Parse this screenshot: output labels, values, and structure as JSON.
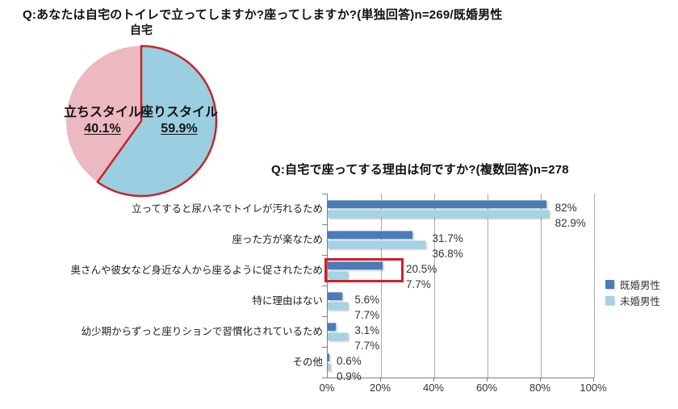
{
  "chart_data": [
    {
      "type": "pie",
      "question_title": "Q:あなたは自宅のトイレで立ってしますか?座ってしますか?(単独回答)n=269/既婚男性",
      "title": "自宅",
      "slices": [
        {
          "label": "座りスタイル",
          "value": 59.9,
          "value_text": "59.9%",
          "color": "#99cfe0",
          "outlined_red": true
        },
        {
          "label": "立ちスタイル",
          "value": 40.1,
          "value_text": "40.1%",
          "color": "#ecb8c1",
          "outlined_red": false
        }
      ],
      "outline_color": "#c9232b",
      "start_angle_deg": 0,
      "direction": "clockwise",
      "legend": false
    },
    {
      "type": "bar",
      "orientation": "horizontal",
      "title": "Q:自宅で座ってする理由は何ですか?(複数回答)n=278",
      "categories": [
        "立ってすると尿ハネでトイレが汚れるため",
        "座った方が楽なため",
        "奥さんや彼女など身近な人から座るように促されたため",
        "特に理由はない",
        "幼少期からずっと座りションで習慣化されているため",
        "その他"
      ],
      "series": [
        {
          "name": "既婚男性",
          "color": "#4a7cb8",
          "values": [
            82,
            31.7,
            20.5,
            5.6,
            3.1,
            0.6
          ],
          "value_labels": [
            "82%",
            "31.7%",
            "20.5%",
            "5.6%",
            "3.1%",
            "0.6%"
          ]
        },
        {
          "name": "未婚男性",
          "color": "#a3d3e5",
          "values": [
            82.9,
            36.8,
            7.7,
            7.7,
            7.7,
            0.9
          ],
          "value_labels": [
            "82.9%",
            "36.8%",
            "7.7%",
            "7.7%",
            "7.7%",
            "0.9%"
          ]
        }
      ],
      "xlim": [
        0,
        100
      ],
      "xtick_labels": [
        "0%",
        "20%",
        "40%",
        "60%",
        "80%",
        "100%"
      ],
      "legend_position": "right",
      "gridlines": true,
      "highlighted_category_index": 2,
      "highlight_box_color": "#cc2128"
    }
  ]
}
